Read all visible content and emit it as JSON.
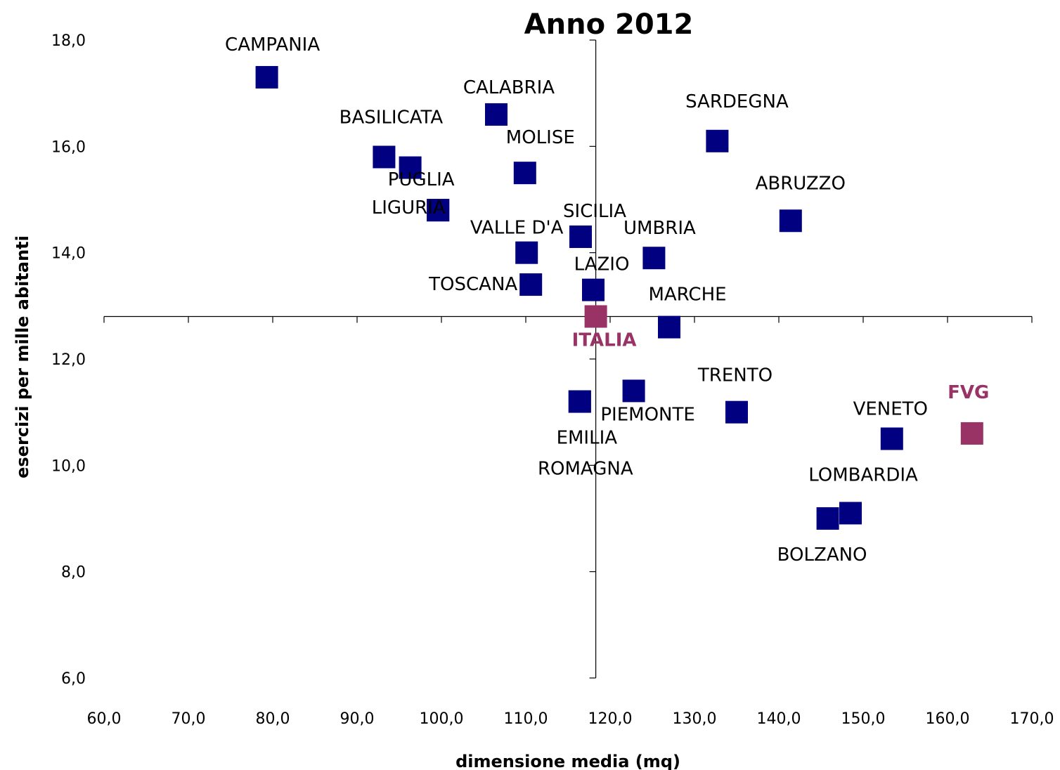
{
  "chart_data": {
    "type": "scatter",
    "title": "Anno 2012",
    "xlabel": "dimensione media (mq)",
    "ylabel": "esercizi per mille abitanti",
    "xlim": [
      60,
      170
    ],
    "ylim": [
      6,
      18
    ],
    "x_ticks": [
      "60,0",
      "70,0",
      "80,0",
      "90,0",
      "100,0",
      "110,0",
      "120,0",
      "130,0",
      "140,0",
      "150,0",
      "160,0",
      "170,0"
    ],
    "y_ticks": [
      "6,0",
      "8,0",
      "10,0",
      "12,0",
      "14,0",
      "16,0",
      "18,0"
    ],
    "crosshair": {
      "x": 118.3,
      "y": 12.8
    },
    "grid": false,
    "legend": "none",
    "colors": {
      "regular": "#000080",
      "highlight": "#993366"
    },
    "points": [
      {
        "name": "CAMPANIA",
        "x": 79.3,
        "y": 17.3,
        "color": "regular"
      },
      {
        "name": "CALABRIA",
        "x": 106.5,
        "y": 16.6,
        "color": "regular"
      },
      {
        "name": "BASILICATA",
        "x": 93.2,
        "y": 15.8,
        "color": "regular"
      },
      {
        "name": "",
        "x": 96.3,
        "y": 15.6,
        "color": "regular"
      },
      {
        "name": "MOLISE",
        "x": 109.9,
        "y": 15.5,
        "color": "regular"
      },
      {
        "name": "PUGLIA",
        "x": 99.6,
        "y": 14.8,
        "color": "regular"
      },
      {
        "name": "LIGURIA",
        "x": 99.6,
        "y": 14.8,
        "color": "regular"
      },
      {
        "name": "SARDEGNA",
        "x": 132.7,
        "y": 16.1,
        "color": "regular"
      },
      {
        "name": "ABRUZZO",
        "x": 141.4,
        "y": 14.6,
        "color": "regular"
      },
      {
        "name": "SICILIA",
        "x": 116.5,
        "y": 14.3,
        "color": "regular"
      },
      {
        "name": "VALLE D'A",
        "x": 110.1,
        "y": 14.0,
        "color": "regular"
      },
      {
        "name": "UMBRIA",
        "x": 125.2,
        "y": 13.9,
        "color": "regular"
      },
      {
        "name": "LAZIO",
        "x": 118.0,
        "y": 13.3,
        "color": "regular"
      },
      {
        "name": "TOSCANA",
        "x": 110.6,
        "y": 13.4,
        "color": "regular"
      },
      {
        "name": "ITALIA",
        "x": 118.3,
        "y": 12.8,
        "color": "highlight"
      },
      {
        "name": "MARCHE",
        "x": 127.0,
        "y": 12.6,
        "color": "regular"
      },
      {
        "name": "PIEMONTE",
        "x": 122.8,
        "y": 11.4,
        "color": "regular"
      },
      {
        "name": "TRENTO",
        "x": 135.0,
        "y": 11.0,
        "color": "regular"
      },
      {
        "name": "EMILIA",
        "x": 116.4,
        "y": 11.2,
        "color": "regular"
      },
      {
        "name": "ROMAGNA",
        "x": 116.4,
        "y": 11.2,
        "color": "regular"
      },
      {
        "name": "VENETO",
        "x": 153.4,
        "y": 10.5,
        "color": "regular"
      },
      {
        "name": "FVG",
        "x": 162.9,
        "y": 10.6,
        "color": "highlight"
      },
      {
        "name": "LOMBARDIA",
        "x": 148.5,
        "y": 9.1,
        "color": "regular"
      },
      {
        "name": "BOLZANO",
        "x": 145.8,
        "y": 9.0,
        "color": "regular"
      }
    ]
  }
}
